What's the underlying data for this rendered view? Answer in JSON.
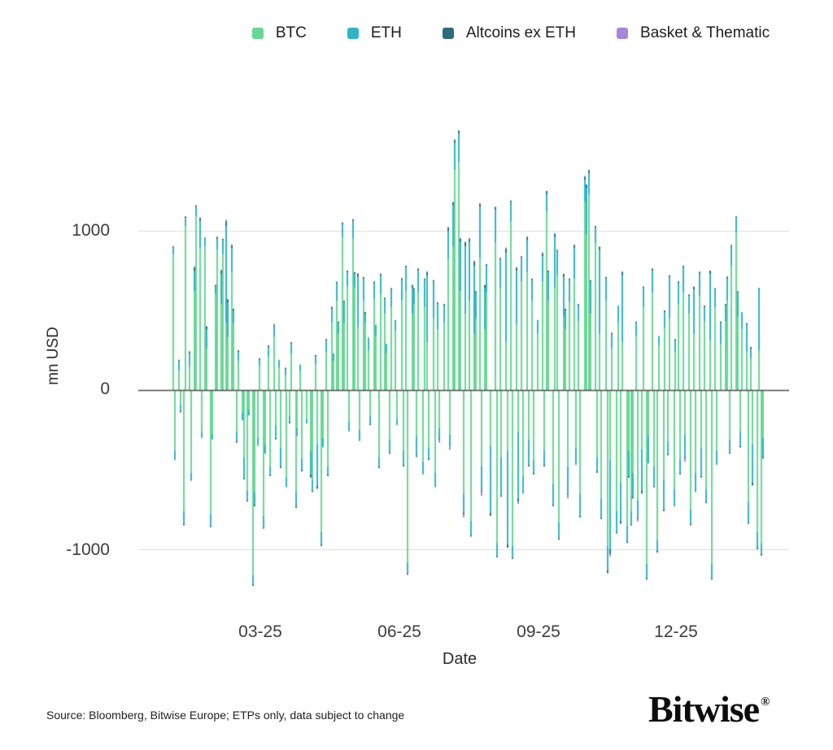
{
  "legend": {
    "items": [
      {
        "label": "BTC",
        "color": "#68d795"
      },
      {
        "label": "ETH",
        "color": "#30b4c4"
      },
      {
        "label": "Altcoins ex ETH",
        "color": "#2e6b7d"
      },
      {
        "label": "Basket & Thematic",
        "color": "#a687dd"
      }
    ]
  },
  "axes": {
    "y_label": "mn USD",
    "x_label": "Date"
  },
  "footer": {
    "source": "Source: Bloomberg, Bitwise Europe; ETPs only, data subject to change",
    "brand": "Bitwise",
    "registered": "®"
  },
  "chart_data": {
    "type": "bar",
    "stacked": true,
    "title": "",
    "xlabel": "Date",
    "ylabel": "mn USD",
    "ylim": [
      -1300,
      1700
    ],
    "grid": "horizontal",
    "grid_color": "#dcdcdc",
    "zero_line_color": "#4a4a4a",
    "legend_position": "top",
    "x_unit": "days since 2025-01-01 (daily crypto ETP net flows)",
    "yticks": [
      {
        "label": "1000",
        "value": 1000
      },
      {
        "label": "0",
        "value": 0
      },
      {
        "label": "-1000",
        "value": -1000
      }
    ],
    "xticks": [
      {
        "label": "03-25",
        "day": 59
      },
      {
        "label": "06-25",
        "day": 151
      },
      {
        "label": "09-25",
        "day": 243
      },
      {
        "label": "12-25",
        "day": 334
      }
    ],
    "series_names": [
      "BTC",
      "ETH",
      "Altcoins ex ETH",
      "Basket & Thematic"
    ],
    "series_colors": [
      "#68d795",
      "#30b4c4",
      "#2e6b7d",
      "#a687dd"
    ],
    "row_format": [
      "day",
      "BTC",
      "ETH",
      "Altcoins ex ETH",
      "Basket & Thematic"
    ],
    "rows": [
      [
        1,
        850,
        40,
        10,
        5
      ],
      [
        2,
        -380,
        -60,
        0,
        0
      ],
      [
        5,
        120,
        60,
        10,
        0
      ],
      [
        6,
        -90,
        -40,
        -10,
        0
      ],
      [
        8,
        -760,
        -80,
        -10,
        0
      ],
      [
        9,
        1030,
        50,
        10,
        0
      ],
      [
        12,
        150,
        80,
        10,
        5
      ],
      [
        13,
        -520,
        -50,
        0,
        0
      ],
      [
        15,
        620,
        130,
        20,
        5
      ],
      [
        16,
        1090,
        60,
        10,
        0
      ],
      [
        19,
        890,
        170,
        20,
        5
      ],
      [
        20,
        -260,
        -40,
        0,
        0
      ],
      [
        22,
        900,
        60,
        0,
        0
      ],
      [
        23,
        260,
        120,
        20,
        0
      ],
      [
        26,
        -780,
        -70,
        -10,
        0
      ],
      [
        27,
        -280,
        -30,
        0,
        0
      ],
      [
        29,
        600,
        50,
        10,
        0
      ],
      [
        30,
        880,
        70,
        10,
        5
      ],
      [
        33,
        540,
        190,
        20,
        5
      ],
      [
        34,
        850,
        90,
        10,
        0
      ],
      [
        36,
        420,
        610,
        30,
        10
      ],
      [
        37,
        330,
        220,
        20,
        0
      ],
      [
        40,
        740,
        150,
        20,
        5
      ],
      [
        41,
        420,
        80,
        10,
        0
      ],
      [
        43,
        -260,
        -60,
        -10,
        0
      ],
      [
        44,
        180,
        60,
        10,
        0
      ],
      [
        47,
        -140,
        -50,
        0,
        0
      ],
      [
        48,
        -420,
        -130,
        -10,
        0
      ],
      [
        50,
        -630,
        -60,
        -10,
        0
      ],
      [
        51,
        -120,
        -40,
        0,
        0
      ],
      [
        54,
        -1160,
        -60,
        -10,
        0
      ],
      [
        55,
        -640,
        -80,
        -10,
        0
      ],
      [
        57,
        -300,
        -50,
        0,
        0
      ],
      [
        58,
        150,
        40,
        10,
        0
      ],
      [
        61,
        -790,
        -70,
        -10,
        0
      ],
      [
        62,
        -340,
        -60,
        0,
        0
      ],
      [
        64,
        210,
        60,
        10,
        0
      ],
      [
        65,
        -480,
        -50,
        -10,
        0
      ],
      [
        68,
        330,
        70,
        10,
        5
      ],
      [
        69,
        -220,
        -80,
        -10,
        0
      ],
      [
        71,
        140,
        50,
        0,
        0
      ],
      [
        72,
        -360,
        -120,
        -10,
        0
      ],
      [
        75,
        90,
        40,
        10,
        0
      ],
      [
        76,
        -550,
        -60,
        0,
        0
      ],
      [
        78,
        -160,
        -40,
        -10,
        0
      ],
      [
        79,
        230,
        60,
        10,
        0
      ],
      [
        82,
        -640,
        -90,
        -10,
        0
      ],
      [
        83,
        -240,
        -50,
        0,
        0
      ],
      [
        85,
        120,
        40,
        0,
        0
      ],
      [
        86,
        -430,
        -70,
        -10,
        0
      ],
      [
        89,
        -180,
        -30,
        0,
        0
      ],
      [
        92,
        -380,
        -150,
        -20,
        0
      ],
      [
        93,
        -560,
        -70,
        -10,
        0
      ],
      [
        95,
        160,
        50,
        10,
        0
      ],
      [
        96,
        -340,
        -260,
        -20,
        0
      ],
      [
        99,
        -890,
        -80,
        -10,
        0
      ],
      [
        100,
        -300,
        -60,
        0,
        0
      ],
      [
        102,
        240,
        70,
        10,
        0
      ],
      [
        103,
        -480,
        -50,
        -10,
        0
      ],
      [
        106,
        420,
        90,
        10,
        5
      ],
      [
        107,
        180,
        50,
        0,
        0
      ],
      [
        109,
        560,
        110,
        10,
        0
      ],
      [
        110,
        350,
        70,
        10,
        0
      ],
      [
        113,
        960,
        80,
        10,
        5
      ],
      [
        114,
        420,
        130,
        10,
        0
      ],
      [
        116,
        650,
        90,
        10,
        0
      ],
      [
        117,
        -200,
        -60,
        0,
        0
      ],
      [
        120,
        950,
        110,
        10,
        5
      ],
      [
        121,
        640,
        90,
        10,
        0
      ],
      [
        123,
        390,
        320,
        20,
        5
      ],
      [
        124,
        -250,
        -70,
        0,
        0
      ],
      [
        127,
        560,
        140,
        10,
        0
      ],
      [
        128,
        420,
        60,
        10,
        0
      ],
      [
        130,
        250,
        80,
        0,
        0
      ],
      [
        131,
        -160,
        -50,
        -10,
        0
      ],
      [
        134,
        570,
        100,
        10,
        5
      ],
      [
        135,
        340,
        70,
        0,
        0
      ],
      [
        137,
        -420,
        -60,
        -10,
        0
      ],
      [
        138,
        600,
        120,
        10,
        0
      ],
      [
        141,
        480,
        90,
        10,
        0
      ],
      [
        142,
        230,
        60,
        0,
        0
      ],
      [
        144,
        -310,
        -80,
        -10,
        0
      ],
      [
        145,
        520,
        110,
        10,
        0
      ],
      [
        148,
        370,
        70,
        0,
        0
      ],
      [
        149,
        -180,
        -40,
        0,
        0
      ],
      [
        152,
        560,
        130,
        10,
        5
      ],
      [
        153,
        -380,
        -90,
        -10,
        0
      ],
      [
        155,
        620,
        150,
        10,
        0
      ],
      [
        156,
        -1080,
        -70,
        -10,
        0
      ],
      [
        159,
        480,
        160,
        20,
        0
      ],
      [
        160,
        540,
        90,
        10,
        0
      ],
      [
        162,
        -290,
        -120,
        -10,
        0
      ],
      [
        163,
        610,
        140,
        10,
        5
      ],
      [
        166,
        -450,
        -80,
        0,
        0
      ],
      [
        167,
        520,
        170,
        10,
        0
      ],
      [
        169,
        300,
        420,
        20,
        5
      ],
      [
        170,
        -360,
        -70,
        -10,
        0
      ],
      [
        173,
        450,
        230,
        10,
        0
      ],
      [
        174,
        -520,
        -90,
        0,
        0
      ],
      [
        176,
        380,
        160,
        10,
        0
      ],
      [
        177,
        -240,
        -60,
        -10,
        -20
      ],
      [
        180,
        420,
        110,
        10,
        0
      ],
      [
        183,
        820,
        180,
        20,
        5
      ],
      [
        184,
        -280,
        -80,
        0,
        -15
      ],
      [
        186,
        900,
        260,
        20,
        0
      ],
      [
        187,
        1380,
        170,
        20,
        5
      ],
      [
        190,
        1430,
        180,
        20,
        0
      ],
      [
        191,
        620,
        310,
        20,
        5
      ],
      [
        193,
        -650,
        -120,
        -10,
        -20
      ],
      [
        194,
        480,
        420,
        30,
        0
      ],
      [
        197,
        560,
        370,
        20,
        5
      ],
      [
        198,
        -820,
        -90,
        -10,
        0
      ],
      [
        200,
        350,
        430,
        30,
        0
      ],
      [
        201,
        450,
        160,
        10,
        0
      ],
      [
        204,
        830,
        320,
        20,
        5
      ],
      [
        205,
        -480,
        -150,
        -10,
        -25
      ],
      [
        207,
        380,
        260,
        20,
        0
      ],
      [
        208,
        610,
        170,
        10,
        0
      ],
      [
        211,
        -350,
        -420,
        -20,
        0
      ],
      [
        214,
        920,
        210,
        20,
        0
      ],
      [
        215,
        -960,
        -80,
        -10,
        0
      ],
      [
        217,
        640,
        180,
        10,
        0
      ],
      [
        218,
        -420,
        -240,
        -10,
        0
      ],
      [
        221,
        300,
        560,
        30,
        5
      ],
      [
        222,
        -380,
        -590,
        -20,
        0
      ],
      [
        224,
        1060,
        120,
        10,
        0
      ],
      [
        225,
        -980,
        -70,
        -10,
        0
      ],
      [
        228,
        410,
        340,
        20,
        0
      ],
      [
        229,
        -260,
        -420,
        -20,
        -15
      ],
      [
        231,
        680,
        150,
        10,
        0
      ],
      [
        232,
        -540,
        -110,
        0,
        0
      ],
      [
        235,
        740,
        200,
        20,
        5
      ],
      [
        236,
        -310,
        -160,
        -10,
        0
      ],
      [
        238,
        560,
        130,
        10,
        0
      ],
      [
        239,
        -440,
        -80,
        -10,
        0
      ],
      [
        242,
        350,
        90,
        0,
        0
      ],
      [
        245,
        680,
        160,
        20,
        5
      ],
      [
        246,
        -380,
        -90,
        -10,
        0
      ],
      [
        248,
        1120,
        110,
        20,
        0
      ],
      [
        249,
        560,
        180,
        10,
        0
      ],
      [
        252,
        -590,
        -130,
        -10,
        0
      ],
      [
        253,
        640,
        320,
        20,
        5
      ],
      [
        255,
        720,
        150,
        10,
        0
      ],
      [
        256,
        -830,
        -100,
        -10,
        0
      ],
      [
        259,
        460,
        250,
        20,
        0
      ],
      [
        260,
        380,
        120,
        10,
        0
      ],
      [
        262,
        -480,
        -170,
        -10,
        -20
      ],
      [
        263,
        550,
        140,
        10,
        0
      ],
      [
        266,
        700,
        190,
        20,
        5
      ],
      [
        267,
        -360,
        -110,
        0,
        0
      ],
      [
        269,
        430,
        100,
        10,
        0
      ],
      [
        270,
        -650,
        -140,
        -10,
        0
      ],
      [
        273,
        1180,
        140,
        20,
        5
      ],
      [
        274,
        980,
        290,
        20,
        0
      ],
      [
        276,
        1230,
        130,
        20,
        5
      ],
      [
        277,
        480,
        200,
        10,
        0
      ],
      [
        280,
        920,
        100,
        10,
        0
      ],
      [
        281,
        -420,
        -90,
        -10,
        0
      ],
      [
        283,
        350,
        530,
        20,
        0
      ],
      [
        284,
        -680,
        -120,
        -10,
        0
      ],
      [
        287,
        560,
        140,
        10,
        0
      ],
      [
        288,
        -980,
        -150,
        -20,
        0
      ],
      [
        290,
        -440,
        -560,
        -30,
        -15
      ],
      [
        291,
        260,
        90,
        10,
        0
      ],
      [
        294,
        -760,
        -130,
        -10,
        0
      ],
      [
        295,
        420,
        110,
        0,
        0
      ],
      [
        297,
        -580,
        -240,
        -20,
        0
      ],
      [
        298,
        300,
        420,
        20,
        5
      ],
      [
        301,
        -850,
        -100,
        -10,
        0
      ],
      [
        302,
        -380,
        -160,
        -10,
        0
      ],
      [
        304,
        -760,
        -80,
        -10,
        0
      ],
      [
        305,
        -520,
        -150,
        -10,
        0
      ],
      [
        307,
        340,
        80,
        10,
        0
      ],
      [
        308,
        -690,
        -110,
        -10,
        -15
      ],
      [
        311,
        -370,
        -260,
        -20,
        0
      ],
      [
        312,
        520,
        120,
        10,
        0
      ],
      [
        314,
        -1090,
        -90,
        -10,
        0
      ],
      [
        315,
        -290,
        -170,
        0,
        0
      ],
      [
        318,
        610,
        140,
        10,
        5
      ],
      [
        319,
        -480,
        -120,
        -10,
        0
      ],
      [
        321,
        -940,
        -70,
        -10,
        0
      ],
      [
        322,
        280,
        60,
        0,
        0
      ],
      [
        325,
        -560,
        -190,
        -10,
        0
      ],
      [
        326,
        390,
        100,
        10,
        0
      ],
      [
        328,
        -320,
        -80,
        -10,
        0
      ],
      [
        329,
        450,
        260,
        10,
        0
      ],
      [
        332,
        -620,
        -110,
        0,
        0
      ],
      [
        333,
        240,
        70,
        10,
        0
      ],
      [
        335,
        540,
        130,
        10,
        5
      ],
      [
        336,
        -430,
        -90,
        -10,
        0
      ],
      [
        338,
        610,
        160,
        10,
        0
      ],
      [
        339,
        -280,
        -140,
        -10,
        -20
      ],
      [
        342,
        480,
        110,
        10,
        0
      ],
      [
        343,
        -750,
        -90,
        -10,
        0
      ],
      [
        345,
        350,
        280,
        20,
        0
      ],
      [
        346,
        -520,
        -120,
        0,
        0
      ],
      [
        349,
        590,
        140,
        10,
        5
      ],
      [
        350,
        -360,
        -180,
        -10,
        0
      ],
      [
        352,
        430,
        90,
        10,
        0
      ],
      [
        353,
        -620,
        -80,
        -10,
        0
      ],
      [
        356,
        310,
        420,
        20,
        0
      ],
      [
        357,
        -1090,
        -90,
        -10,
        0
      ],
      [
        359,
        520,
        110,
        10,
        0
      ],
      [
        360,
        -380,
        -90,
        0,
        0
      ],
      [
        363,
        290,
        130,
        10,
        0
      ],
      [
        366,
        430,
        100,
        10,
        0
      ],
      [
        367,
        560,
        140,
        10,
        5
      ],
      [
        369,
        -310,
        -80,
        -10,
        0
      ],
      [
        370,
        780,
        120,
        10,
        0
      ],
      [
        373,
        990,
        90,
        10,
        0
      ],
      [
        374,
        460,
        150,
        10,
        0
      ],
      [
        376,
        -260,
        -90,
        -10,
        0
      ],
      [
        377,
        380,
        110,
        0,
        0
      ],
      [
        380,
        240,
        170,
        10,
        0
      ],
      [
        381,
        -700,
        -130,
        -10,
        0
      ],
      [
        383,
        200,
        60,
        10,
        0
      ],
      [
        384,
        -340,
        -240,
        -20,
        0
      ],
      [
        387,
        -890,
        -100,
        -10,
        0
      ],
      [
        388,
        250,
        380,
        10,
        0
      ],
      [
        390,
        -960,
        -70,
        -10,
        0
      ],
      [
        391,
        -300,
        -120,
        -10,
        0
      ]
    ]
  }
}
